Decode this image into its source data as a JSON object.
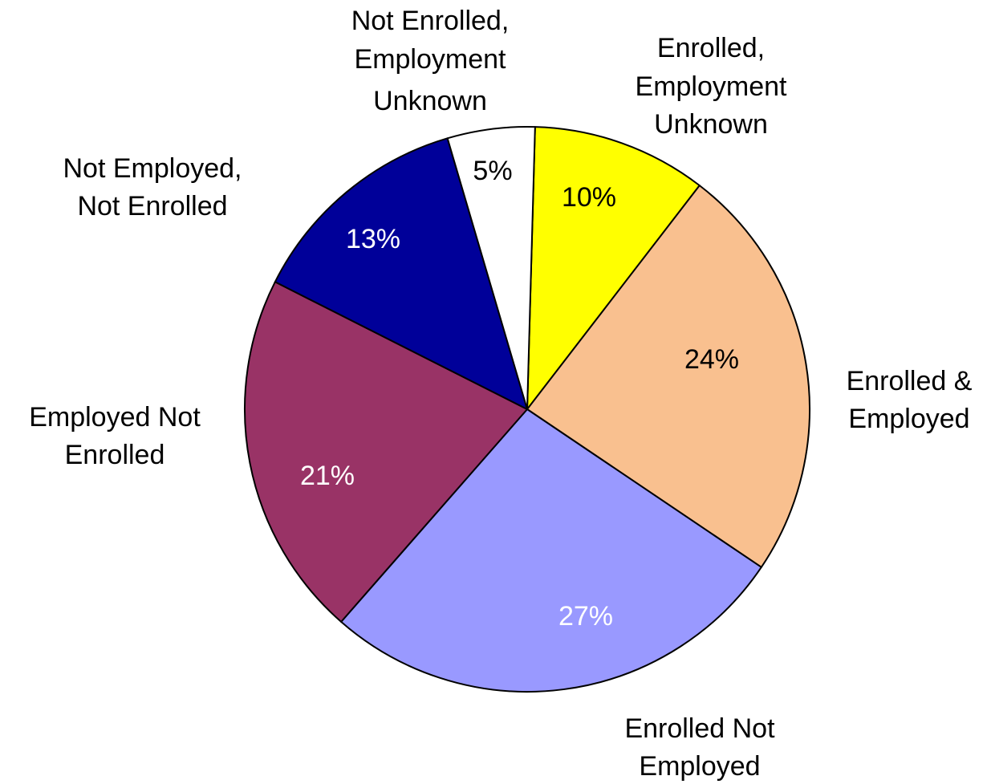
{
  "chart_data": {
    "type": "pie",
    "categories": [
      [
        "Enrolled,",
        "Employment",
        "Unknown"
      ],
      [
        "Enrolled &",
        "Employed"
      ],
      [
        "Enrolled Not",
        "Employed"
      ],
      [
        "Employed Not",
        "Enrolled"
      ],
      [
        "Not Employed,",
        "Not Enrolled"
      ],
      [
        "Not Enrolled,",
        "Employment",
        "Unknown"
      ]
    ],
    "values": [
      10,
      24,
      27,
      21,
      13,
      5
    ],
    "value_labels": [
      "10%",
      "24%",
      "27%",
      "21%",
      "13%",
      "5%"
    ],
    "colors": [
      "#ffff00",
      "#f9c08f",
      "#9999ff",
      "#993366",
      "#000099",
      "#ffffff"
    ],
    "value_label_colors": [
      "#000000",
      "#000000",
      "#ffffff",
      "#ffffff",
      "#ffffff",
      "#000000"
    ]
  }
}
